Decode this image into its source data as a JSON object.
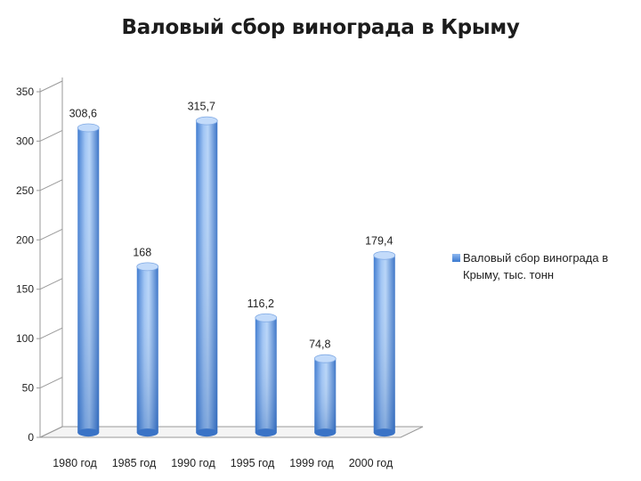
{
  "chart_data": {
    "type": "bar",
    "title": "Валовый сбор винограда в Крыму",
    "categories": [
      "1980 год",
      "1985 год",
      "1990 год",
      "1995 год",
      "1999 год",
      "2000 год"
    ],
    "series": [
      {
        "name": "Валовый сбор винограда в Крыму, тыс. тонн",
        "values": [
          308.6,
          168,
          315.7,
          116.2,
          74.8,
          179.4
        ],
        "data_labels": [
          "308,6",
          "168",
          "315,7",
          "116,2",
          "74,8",
          "179,4"
        ]
      }
    ],
    "ylim": [
      0,
      350
    ],
    "yticks": [
      0,
      50,
      100,
      150,
      200,
      250,
      300,
      350
    ],
    "xlabel": "",
    "ylabel": "",
    "grid": false,
    "legend_position": "right",
    "bar_style": "3d-cylinder",
    "colors": {
      "bar_light": "#a9cbf6",
      "bar_mid": "#6ea1e4",
      "bar_dark": "#2f6cc4",
      "axis": "#9a9a9a"
    }
  }
}
